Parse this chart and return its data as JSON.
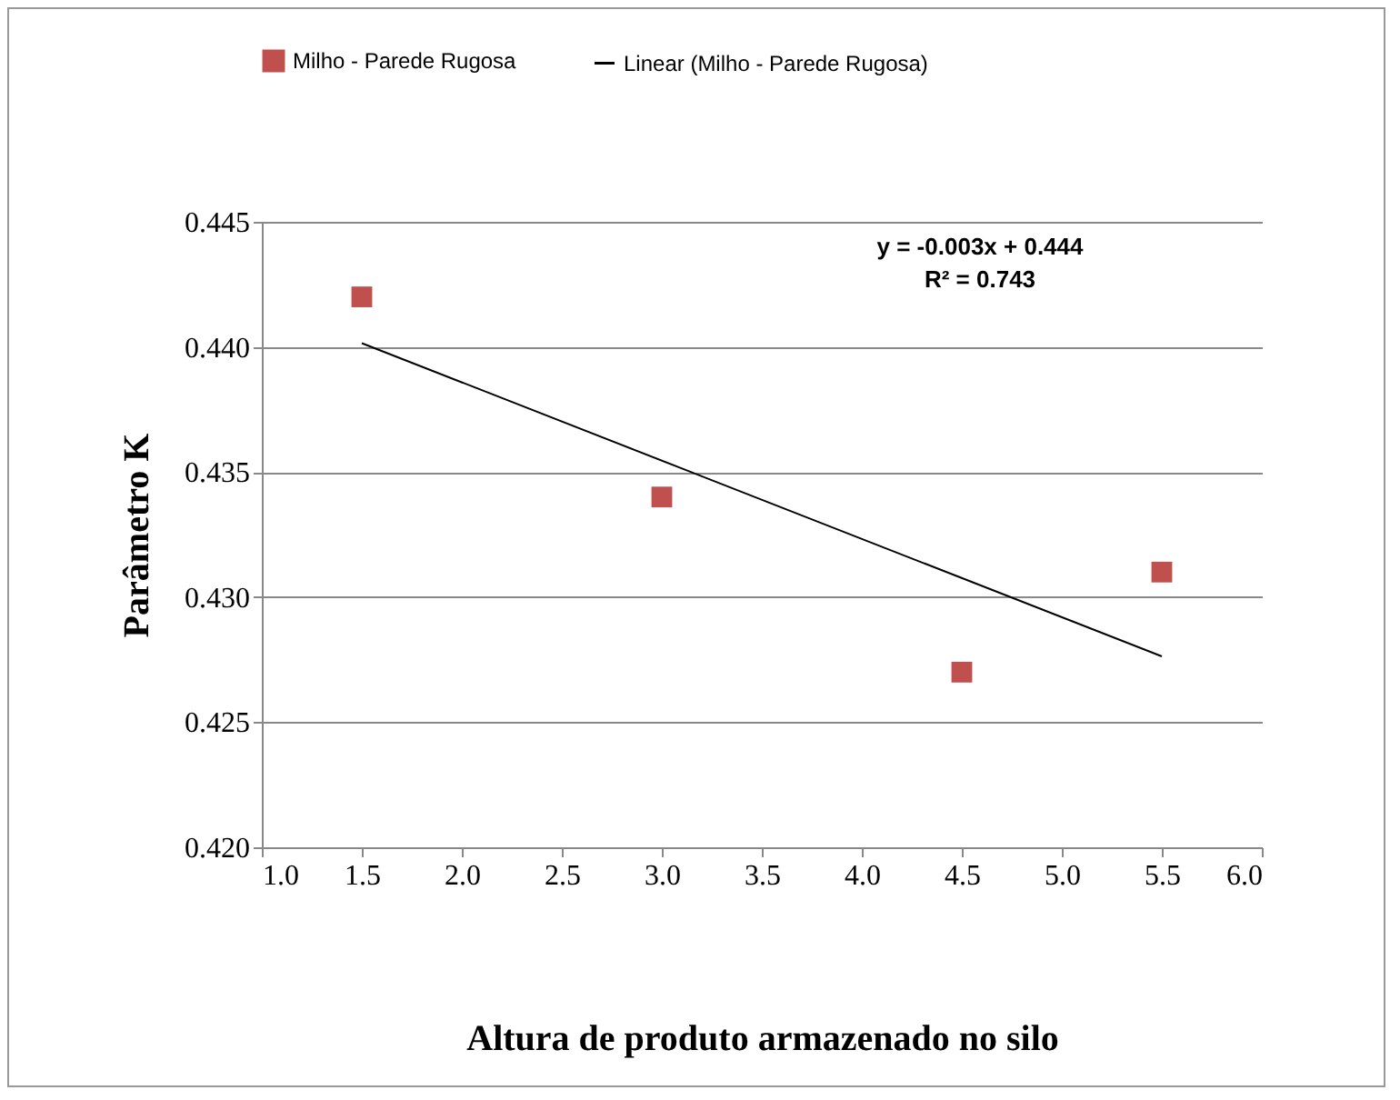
{
  "chart_data": {
    "type": "scatter",
    "xlabel": "Altura de produto armazenado no silo",
    "ylabel": "Parâmetro K",
    "series": [
      {
        "name": "Milho - Parede Rugosa",
        "color": "#c0504d",
        "x": [
          1.5,
          3.0,
          4.5,
          5.5
        ],
        "values": [
          0.442,
          0.434,
          0.427,
          0.431
        ],
        "marker": "square"
      },
      {
        "name": "Linear (Milho - Parede Rugosa)",
        "type": "line",
        "color": "#000000",
        "x": [
          1.5,
          5.5
        ],
        "values": [
          0.44015,
          0.42763
        ],
        "marker": "none",
        "line_style": "solid"
      }
    ],
    "xlim": [
      1.0,
      6.0
    ],
    "xticks": [
      {
        "value": 1,
        "label": "1.0"
      },
      {
        "value": 1.5,
        "label": "1.5"
      },
      {
        "value": 2,
        "label": "2.0"
      },
      {
        "value": 2.5,
        "label": "2.5"
      },
      {
        "value": 3,
        "label": "3.0"
      },
      {
        "value": 3.5,
        "label": "3.5"
      },
      {
        "value": 4,
        "label": "4.0"
      },
      {
        "value": 4.5,
        "label": "4.5"
      },
      {
        "value": 5,
        "label": "5.0"
      },
      {
        "value": 5.5,
        "label": "5.5"
      },
      {
        "value": 6,
        "label": "6.0"
      }
    ],
    "ylim": [
      0.42,
      0.445
    ],
    "yticks": [
      {
        "value": 0.42,
        "label": "0.420"
      },
      {
        "value": 0.425,
        "label": "0.425"
      },
      {
        "value": 0.43,
        "label": "0.430"
      },
      {
        "value": 0.435,
        "label": "0.435"
      },
      {
        "value": 0.44,
        "label": "0.440"
      },
      {
        "value": 0.445,
        "label": "0.445"
      }
    ],
    "grid": "y",
    "legend": "top",
    "annotations": [
      "y = -0.003x + 0.444",
      "R² = 0.743"
    ]
  }
}
